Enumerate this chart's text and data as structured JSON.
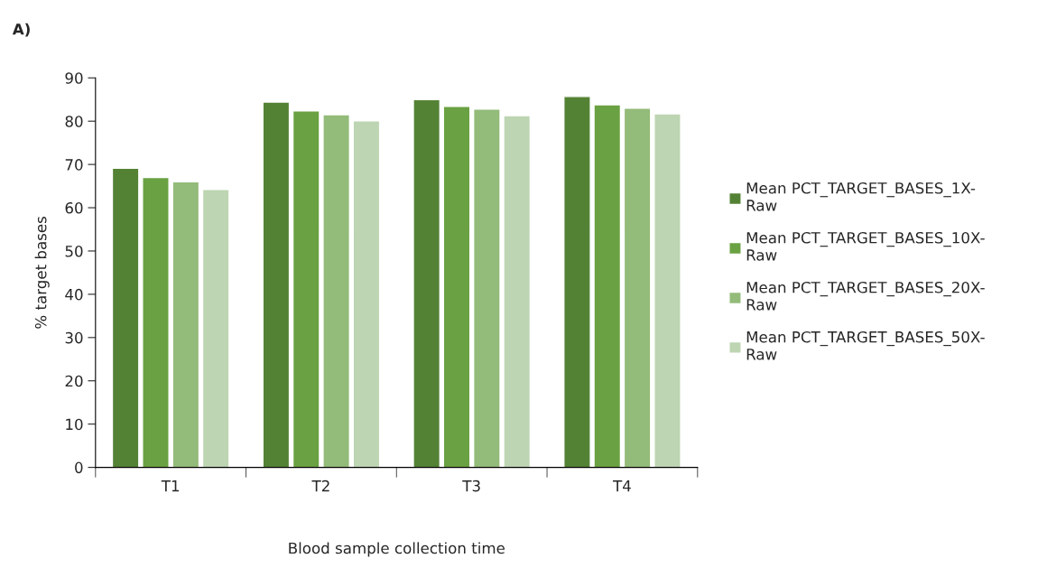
{
  "chart_data": {
    "type": "bar",
    "xlabel": "Blood sample collection time",
    "ylabel": "% target bases",
    "annotations": [
      "A)"
    ],
    "categories": [
      "T1",
      "T2",
      "T3",
      "T4"
    ],
    "series": [
      {
        "name": "Mean PCT_TARGET_BASES_1X-Raw",
        "color": "#548235",
        "values": [
          69.1,
          84.4,
          85.0,
          85.7
        ]
      },
      {
        "name": "Mean PCT_TARGET_BASES_10X-Raw",
        "color": "#6aa142",
        "values": [
          67.0,
          82.4,
          83.4,
          83.8
        ]
      },
      {
        "name": "Mean PCT_TARGET_BASES_20X-Raw",
        "color": "#93bb79",
        "values": [
          66.0,
          81.5,
          82.8,
          83.0
        ]
      },
      {
        "name": "Mean PCT_TARGET_BASES_50X-Raw",
        "color": "#bdd5b2",
        "values": [
          64.2,
          80.1,
          81.3,
          81.7
        ]
      }
    ],
    "ylim": [
      0,
      90
    ],
    "yticks": [
      0,
      10,
      20,
      30,
      40,
      50,
      60,
      70,
      80,
      90
    ],
    "grid": false,
    "legend": "right"
  }
}
